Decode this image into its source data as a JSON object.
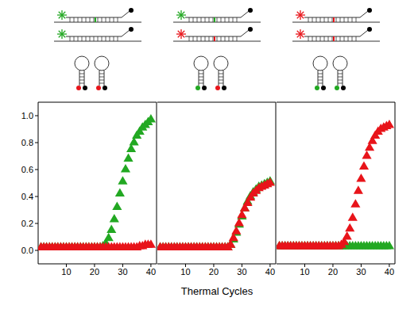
{
  "chart_data": [
    {
      "type": "scatter",
      "xlabel": null,
      "x": [
        1,
        2,
        3,
        4,
        5,
        6,
        7,
        8,
        9,
        10,
        11,
        12,
        13,
        14,
        15,
        16,
        17,
        18,
        19,
        20,
        21,
        22,
        23,
        24,
        25,
        26,
        27,
        28,
        29,
        30,
        31,
        32,
        33,
        34,
        35,
        36,
        37,
        38,
        39,
        40
      ],
      "xlim": [
        0,
        42
      ],
      "xticks": [
        10,
        20,
        30,
        40
      ],
      "ylim": [
        -0.1,
        1.1
      ],
      "yticks": [
        {
          "value": 0,
          "label": "0.0"
        },
        {
          "value": 0.2,
          "label": "0.2"
        },
        {
          "value": 0.4,
          "label": "0.4"
        },
        {
          "value": 0.6,
          "label": "0.6"
        },
        {
          "value": 0.8,
          "label": "0.8"
        },
        {
          "value": 1,
          "label": "1.0"
        }
      ],
      "grid": false,
      "series": [
        {
          "color": "#22a822",
          "marker": "triangle",
          "values": [
            0.02,
            0.02,
            0.02,
            0.02,
            0.02,
            0.02,
            0.02,
            0.02,
            0.02,
            0.02,
            0.02,
            0.02,
            0.02,
            0.02,
            0.02,
            0.02,
            0.02,
            0.02,
            0.02,
            0.02,
            0.02,
            0.02,
            0.03,
            0.05,
            0.09,
            0.15,
            0.23,
            0.32,
            0.42,
            0.51,
            0.6,
            0.68,
            0.75,
            0.8,
            0.85,
            0.88,
            0.91,
            0.93,
            0.95,
            0.97
          ]
        },
        {
          "color": "#e8141a",
          "marker": "triangle",
          "values": [
            0.02,
            0.02,
            0.02,
            0.02,
            0.02,
            0.02,
            0.02,
            0.02,
            0.02,
            0.02,
            0.02,
            0.02,
            0.02,
            0.02,
            0.02,
            0.02,
            0.02,
            0.02,
            0.02,
            0.02,
            0.02,
            0.02,
            0.02,
            0.02,
            0.02,
            0.02,
            0.02,
            0.02,
            0.02,
            0.02,
            0.02,
            0.02,
            0.02,
            0.02,
            0.02,
            0.03,
            0.03,
            0.04,
            0.04,
            0.04
          ]
        }
      ]
    },
    {
      "type": "scatter",
      "xlabel": "Thermal Cycles",
      "x": [
        1,
        2,
        3,
        4,
        5,
        6,
        7,
        8,
        9,
        10,
        11,
        12,
        13,
        14,
        15,
        16,
        17,
        18,
        19,
        20,
        21,
        22,
        23,
        24,
        25,
        26,
        27,
        28,
        29,
        30,
        31,
        32,
        33,
        34,
        35,
        36,
        37,
        38,
        39,
        40
      ],
      "xlim": [
        0,
        42
      ],
      "xticks": [
        10,
        20,
        30,
        40
      ],
      "ylim": [
        -0.1,
        1.1
      ],
      "yticks": [
        0,
        0.2,
        0.4,
        0.6,
        0.8,
        1
      ],
      "grid": false,
      "tick_labels": "x",
      "series": [
        {
          "color": "#22a822",
          "marker": "triangle",
          "values": [
            0.02,
            0.02,
            0.02,
            0.02,
            0.02,
            0.02,
            0.02,
            0.02,
            0.02,
            0.02,
            0.02,
            0.02,
            0.02,
            0.02,
            0.02,
            0.02,
            0.02,
            0.02,
            0.02,
            0.02,
            0.02,
            0.02,
            0.02,
            0.02,
            0.02,
            0.04,
            0.08,
            0.13,
            0.19,
            0.25,
            0.31,
            0.36,
            0.4,
            0.43,
            0.45,
            0.47,
            0.48,
            0.49,
            0.5,
            0.51
          ]
        },
        {
          "color": "#e8141a",
          "marker": "triangle",
          "values": [
            0.02,
            0.02,
            0.02,
            0.02,
            0.02,
            0.02,
            0.02,
            0.02,
            0.02,
            0.02,
            0.02,
            0.02,
            0.02,
            0.02,
            0.02,
            0.02,
            0.02,
            0.02,
            0.02,
            0.02,
            0.02,
            0.02,
            0.02,
            0.02,
            0.02,
            0.04,
            0.09,
            0.14,
            0.2,
            0.26,
            0.31,
            0.35,
            0.39,
            0.42,
            0.44,
            0.46,
            0.47,
            0.48,
            0.49,
            0.5
          ]
        }
      ]
    },
    {
      "type": "scatter",
      "xlabel": null,
      "x": [
        1,
        2,
        3,
        4,
        5,
        6,
        7,
        8,
        9,
        10,
        11,
        12,
        13,
        14,
        15,
        16,
        17,
        18,
        19,
        20,
        21,
        22,
        23,
        24,
        25,
        26,
        27,
        28,
        29,
        30,
        31,
        32,
        33,
        34,
        35,
        36,
        37,
        38,
        39,
        40
      ],
      "xlim": [
        0,
        42
      ],
      "xticks": [
        10,
        20,
        30,
        40
      ],
      "ylim": [
        -0.1,
        1.1
      ],
      "yticks": [
        0,
        0.2,
        0.4,
        0.6,
        0.8,
        1
      ],
      "grid": false,
      "tick_labels": "x",
      "series": [
        {
          "color": "#22a822",
          "marker": "triangle",
          "values": [
            0.03,
            0.03,
            0.03,
            0.03,
            0.03,
            0.03,
            0.03,
            0.03,
            0.03,
            0.03,
            0.03,
            0.03,
            0.03,
            0.03,
            0.03,
            0.03,
            0.03,
            0.03,
            0.03,
            0.03,
            0.03,
            0.03,
            0.03,
            0.03,
            0.03,
            0.03,
            0.03,
            0.03,
            0.03,
            0.03,
            0.03,
            0.03,
            0.03,
            0.03,
            0.03,
            0.03,
            0.03,
            0.03,
            0.03,
            0.03
          ]
        },
        {
          "color": "#e8141a",
          "marker": "triangle",
          "values": [
            0.03,
            0.03,
            0.03,
            0.03,
            0.03,
            0.03,
            0.03,
            0.03,
            0.03,
            0.03,
            0.03,
            0.03,
            0.03,
            0.03,
            0.03,
            0.03,
            0.03,
            0.03,
            0.03,
            0.03,
            0.03,
            0.03,
            0.04,
            0.06,
            0.1,
            0.16,
            0.24,
            0.34,
            0.44,
            0.53,
            0.62,
            0.7,
            0.76,
            0.81,
            0.85,
            0.88,
            0.9,
            0.91,
            0.92,
            0.93
          ]
        }
      ]
    }
  ]
}
